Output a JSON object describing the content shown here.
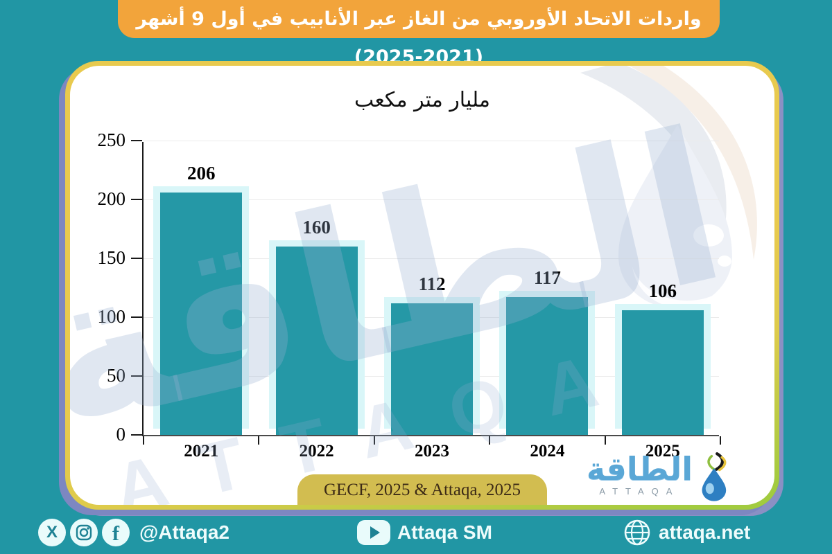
{
  "banner": {
    "title": "واردات الاتحاد الأوروبي من الغاز عبر الأنابيب في أول 9 أشهر (2021-2025)"
  },
  "chart_data": {
    "type": "bar",
    "title": "مليار متر مكعب",
    "categories": [
      "2021",
      "2022",
      "2023",
      "2024",
      "2025"
    ],
    "values": [
      206,
      160,
      112,
      117,
      106
    ],
    "ylim": [
      0,
      250
    ],
    "yticks": [
      0,
      50,
      100,
      150,
      200,
      250
    ],
    "grid": true,
    "legend": "none",
    "bar_color": "#2598a6",
    "bar_glow_color": "#d9f6f8",
    "value_labels_shown": true
  },
  "source": {
    "label": "GECF, 2025 & Attaqa, 2025"
  },
  "logo": {
    "arabic": "الطاقة",
    "latin": "ATTAQA"
  },
  "watermark": {
    "arabic": "الطاقة",
    "latin": "ATTAQA"
  },
  "footer": {
    "social_handle": "@Attaqa2",
    "youtube_label": "Attaqa SM",
    "website": "attaqa.net"
  },
  "colors": {
    "page_background": "#2196a4",
    "banner_orange": "#f2a43b",
    "card_border_gold": "#e8ca4e",
    "card_border_lime": "#a2cb3f",
    "card_shadow_purple": "#7d87c1",
    "source_pill_gold": "#d2bd50",
    "bar_teal": "#2598a6",
    "logo_blue": "#5aa7d6"
  }
}
